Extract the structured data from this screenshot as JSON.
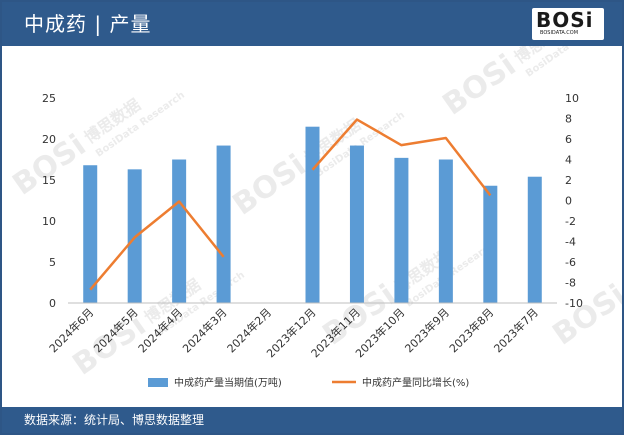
{
  "header": {
    "title": "中成药 | 产量",
    "logo_text": "BOSi",
    "logo_sub": "BOSIDATA.COM"
  },
  "footer": {
    "source": "数据来源：统计局、博思数据整理"
  },
  "watermark": {
    "text": "BOSi",
    "cn": "博思数据",
    "en": "BosiData Research"
  },
  "colors": {
    "bar": "#5b9bd5",
    "line": "#ed7d31",
    "header": "#2f5a8c"
  },
  "chart_data": {
    "type": "bar+line",
    "categories": [
      "2024年6月",
      "2024年5月",
      "2024年4月",
      "2024年3月",
      "2024年2月",
      "2023年12月",
      "2023年11月",
      "2023年10月",
      "2023年9月",
      "2023年8月",
      "2023年7月"
    ],
    "series": [
      {
        "name": "中成药产量当期值(万吨)",
        "type": "bar",
        "axis": "left",
        "values": [
          16.8,
          16.3,
          17.5,
          19.2,
          null,
          21.5,
          19.2,
          17.7,
          17.5,
          14.3,
          15.4
        ]
      },
      {
        "name": "中成药产量同比增长(%)",
        "type": "line",
        "axis": "right",
        "values": [
          -8.7,
          -3.6,
          -0.1,
          -5.5,
          null,
          3.0,
          7.9,
          5.4,
          6.1,
          0.5,
          null
        ]
      }
    ],
    "y_left": {
      "min": 0,
      "max": 25,
      "ticks": [
        0,
        5,
        10,
        15,
        20,
        25
      ]
    },
    "y_right": {
      "min": -10,
      "max": 10,
      "ticks": [
        -10,
        -8,
        -6,
        -4,
        -2,
        0,
        2,
        4,
        6,
        8,
        10
      ]
    },
    "legend_position": "bottom",
    "grid": false
  }
}
